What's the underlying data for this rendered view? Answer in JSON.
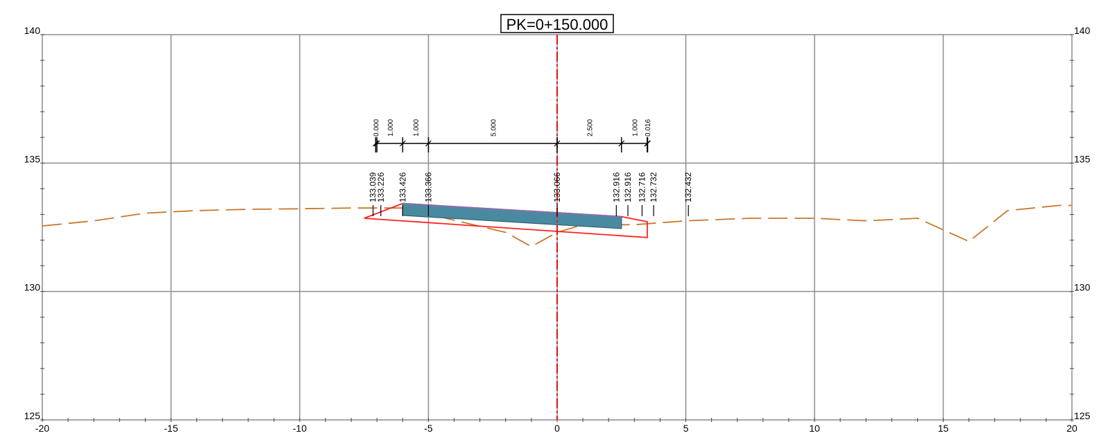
{
  "title": "PK=0+150.000",
  "colors": {
    "grid": "#8c8c8c",
    "terrain": "#c8782a",
    "axis": "#e01010",
    "outline": "#ff2020",
    "pavement_fill": "#4a8aa0",
    "pavement_stroke": "#2e6277",
    "pavement_top": "#8c6db0"
  },
  "axes": {
    "xlim": [
      -20,
      20
    ],
    "ylim": [
      125,
      140
    ],
    "x_ticks": [
      "-20",
      "-15",
      "-10",
      "-5",
      "0",
      "5",
      "10",
      "15",
      "20"
    ],
    "y_ticks": [
      "125",
      "130",
      "135",
      "140"
    ]
  },
  "dimensions": [
    {
      "label": "0.000",
      "x1": -7.05,
      "x2": -7.05
    },
    {
      "label": "1.000",
      "x1": -7.0,
      "x2": -6.0
    },
    {
      "label": "1.000",
      "x1": -6.0,
      "x2": -5.0
    },
    {
      "label": "5.000",
      "x1": -5.0,
      "x2": 0.0
    },
    {
      "label": "2.500",
      "x1": 0.0,
      "x2": 2.5
    },
    {
      "label": "1.000",
      "x1": 2.5,
      "x2": 3.5
    },
    {
      "label": "0.016",
      "x1": 3.5,
      "x2": 3.516
    }
  ],
  "elevation_labels": [
    {
      "value": "133.039",
      "x": -7.15
    },
    {
      "value": "133.226",
      "x": -6.85
    },
    {
      "value": "133.426",
      "x": -6.0
    },
    {
      "value": "133.366",
      "x": -5.0
    },
    {
      "value": "133.066",
      "x": 0.0
    },
    {
      "value": "132.916",
      "x": 2.3
    },
    {
      "value": "132.916",
      "x": 2.75
    },
    {
      "value": "132.716",
      "x": 3.3
    },
    {
      "value": "132.732",
      "x": 3.75
    },
    {
      "value": "132.432",
      "x": 5.1
    }
  ],
  "terrain": [
    [
      -20,
      132.55
    ],
    [
      -18,
      132.75
    ],
    [
      -16,
      133.05
    ],
    [
      -14,
      133.15
    ],
    [
      -12,
      133.2
    ],
    [
      -10,
      133.22
    ],
    [
      -8,
      133.25
    ],
    [
      -6,
      133.25
    ],
    [
      -2,
      132.3
    ],
    [
      -1,
      131.75
    ],
    [
      0,
      132.3
    ],
    [
      1,
      132.6
    ],
    [
      3,
      132.6
    ],
    [
      5,
      132.75
    ],
    [
      7.5,
      132.85
    ],
    [
      10,
      132.85
    ],
    [
      12,
      132.75
    ],
    [
      14,
      132.85
    ],
    [
      16,
      131.95
    ],
    [
      17.5,
      133.15
    ],
    [
      19.5,
      133.35
    ],
    [
      20,
      133.35
    ]
  ],
  "pavement": [
    [
      -6.0,
      133.426
    ],
    [
      2.5,
      132.916
    ],
    [
      2.5,
      132.45
    ],
    [
      -6.0,
      132.96
    ]
  ],
  "subgrade_outline": [
    [
      -7.5,
      132.85
    ],
    [
      -6.0,
      133.426
    ],
    [
      2.5,
      132.916
    ],
    [
      3.5,
      132.716
    ],
    [
      3.5,
      132.1
    ],
    [
      -7.5,
      132.85
    ]
  ]
}
